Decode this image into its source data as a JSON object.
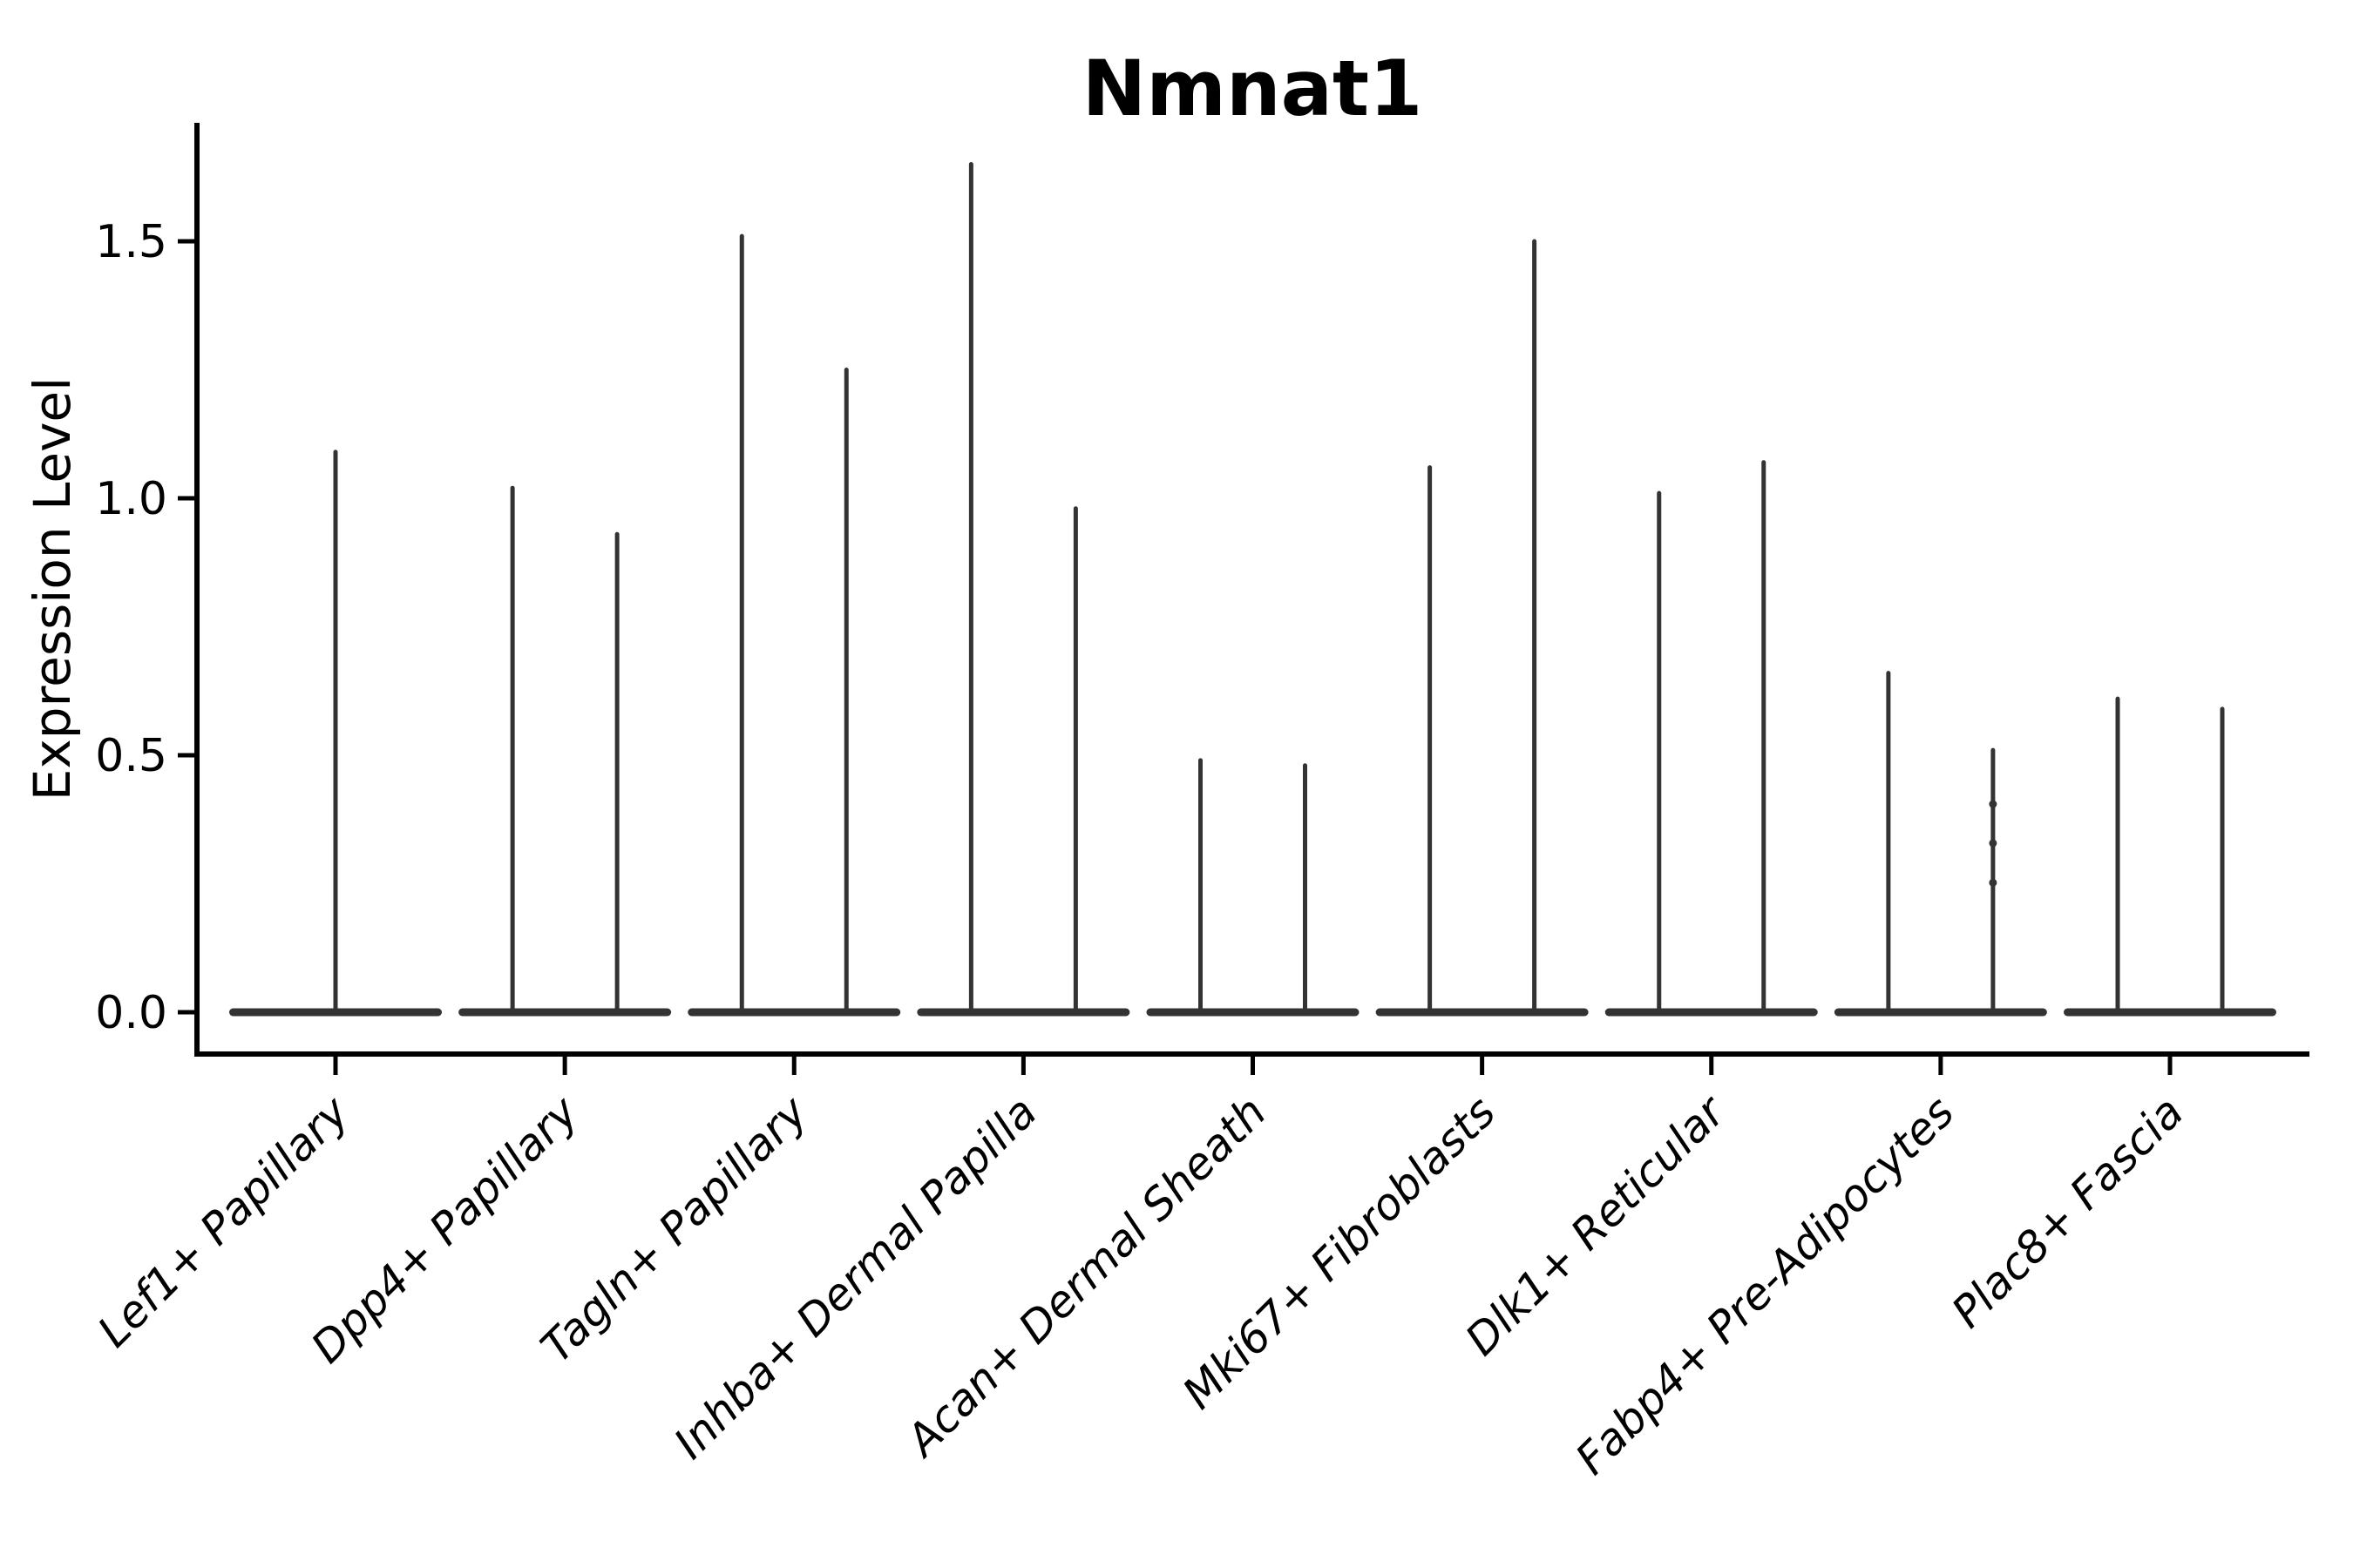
{
  "figure": {
    "title": "Nmnat1",
    "y_axis": {
      "label": "Expression Level",
      "tick_labels": [
        "0.0",
        "0.5",
        "1.0",
        "1.5"
      ]
    },
    "colors": {
      "violin": "#333333",
      "axis": "#000000",
      "background": "#ffffff"
    }
  },
  "chart_data": {
    "type": "violin",
    "title": "Nmnat1",
    "xlabel": "",
    "ylabel": "Expression Level",
    "ylim": [
      0,
      1.73
    ],
    "yticks": [
      0.0,
      0.5,
      1.0,
      1.5
    ],
    "grid": false,
    "legend": "none",
    "description": "Seurat-style violin plot; each violin has nearly all density at expression 0 (flat bar at baseline) with a thin spike rising to its maximum expression value. First category has a single full-width violin; all other categories have two adjacent half-width violins.",
    "categories": [
      {
        "label": "Lef1+ Papillary",
        "violins": [
          {
            "offset": 0,
            "max": 1.09
          }
        ]
      },
      {
        "label": "Dpp4+ Papillary",
        "violins": [
          {
            "offset": -60,
            "max": 1.02
          },
          {
            "offset": 60,
            "max": 0.93
          }
        ]
      },
      {
        "label": "Tagln+ Papillary",
        "violins": [
          {
            "offset": -60,
            "max": 1.51
          },
          {
            "offset": 60,
            "max": 1.25
          }
        ]
      },
      {
        "label": "Inhba+ Dermal Papilla",
        "violins": [
          {
            "offset": -60,
            "max": 1.65
          },
          {
            "offset": 60,
            "max": 0.98
          }
        ]
      },
      {
        "label": "Acan+ Dermal Sheath",
        "violins": [
          {
            "offset": -60,
            "max": 0.49
          },
          {
            "offset": 60,
            "max": 0.48
          }
        ]
      },
      {
        "label": "Mki67+ Fibroblasts",
        "violins": [
          {
            "offset": -60,
            "max": 1.06
          },
          {
            "offset": 60,
            "max": 1.5
          }
        ]
      },
      {
        "label": "Dlk1+ Reticular",
        "violins": [
          {
            "offset": -60,
            "max": 1.01
          },
          {
            "offset": 60,
            "max": 1.07
          }
        ]
      },
      {
        "label": "Fabp4+ Pre-Adipocytes",
        "violins": [
          {
            "offset": -60,
            "max": 0.66
          },
          {
            "offset": 60,
            "max": 0.51
          }
        ]
      },
      {
        "label": "Plac8+ Fascia",
        "violins": [
          {
            "offset": -60,
            "max": 0.61
          },
          {
            "offset": 60,
            "max": 0.59
          }
        ]
      }
    ],
    "jitter_points": [
      {
        "category_index": 7,
        "offset": 60,
        "values": [
          0.405,
          0.329,
          0.252
        ]
      }
    ]
  }
}
